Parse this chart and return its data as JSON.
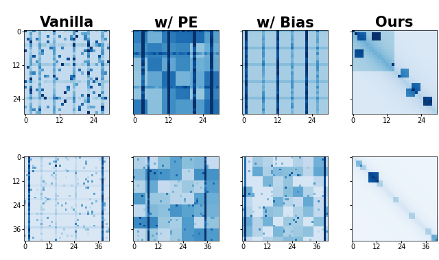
{
  "titles": [
    "Vanilla",
    "w/ PE",
    "w/ Bias",
    "Ours"
  ],
  "title_fontsize": 15,
  "title_fontweight": "bold",
  "row1_n": 30,
  "row2_n": 42,
  "row1_xticks": [
    0,
    12,
    24
  ],
  "row1_yticks": [
    0,
    12,
    24
  ],
  "row2_xticks": [
    0,
    12,
    24,
    36
  ],
  "row2_yticks": [
    0,
    12,
    24,
    36
  ],
  "cmap": "Blues",
  "bg": "#ffffff",
  "vmax_row1": [
    0.7,
    0.9,
    1.0,
    0.85
  ],
  "vmax_row2": [
    1.0,
    0.7,
    0.6,
    1.0
  ]
}
